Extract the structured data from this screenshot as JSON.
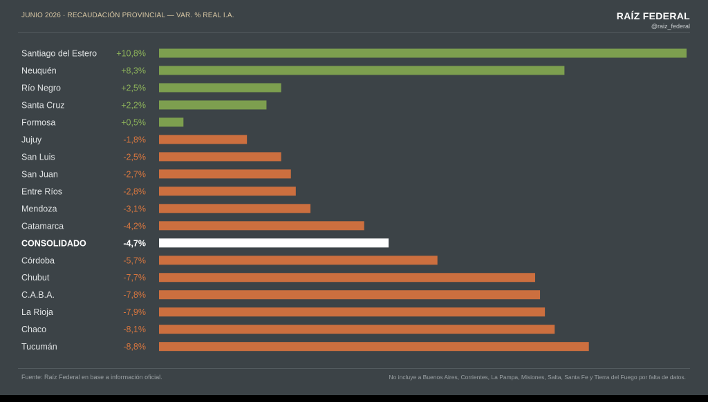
{
  "header": {
    "title": "JUNIO 2026 · RECAUDACIÓN PROVINCIAL — VAR. % REAL I.A.",
    "brand": "RAÍZ FEDERAL",
    "handle": "@raiz_federal"
  },
  "footer": {
    "source": "Fuente: Raíz Federal en base a información oficial.",
    "note": "No incluye a Buenos Aires, Corrientes, La Pampa, Misiones, Salta, Santa Fe y Tierra del Fuego por falta de datos."
  },
  "colors": {
    "positive": "#7d9f4f",
    "negative": "#cc6f3f",
    "highlight": "#ffffff",
    "label_text": "#dfe2e3",
    "positive_text": "#8db35a",
    "negative_text": "#d9773f"
  },
  "chart_data": {
    "type": "bar",
    "orientation": "horizontal",
    "value_axis": "absolute magnitude",
    "categories": [
      "Santiago del Estero",
      "Neuquén",
      "Río Negro",
      "Santa Cruz",
      "Formosa",
      "Jujuy",
      "San Luis",
      "San Juan",
      "Entre Ríos",
      "Mendoza",
      "Catamarca",
      "CONSOLIDADO",
      "Córdoba",
      "Chubut",
      "C.A.B.A.",
      "La Rioja",
      "Chaco",
      "Tucumán"
    ],
    "values": [
      10.8,
      8.3,
      2.5,
      2.2,
      0.5,
      -1.8,
      -2.5,
      -2.7,
      -2.8,
      -3.1,
      -4.2,
      -4.7,
      -5.7,
      -7.7,
      -7.8,
      -7.9,
      -8.1,
      -8.8
    ],
    "value_labels": [
      "+10,8%",
      "+8,3%",
      "+2,5%",
      "+2,2%",
      "+0,5%",
      "-1,8%",
      "-2,5%",
      "-2,7%",
      "-2,8%",
      "-3,1%",
      "-4,2%",
      "-4,7%",
      "-5,7%",
      "-7,7%",
      "-7,8%",
      "-7,9%",
      "-8,1%",
      "-8,8%"
    ],
    "highlight_category": "CONSOLIDADO",
    "xlim": [
      0,
      10.8
    ],
    "grid": false,
    "legend": "none"
  }
}
